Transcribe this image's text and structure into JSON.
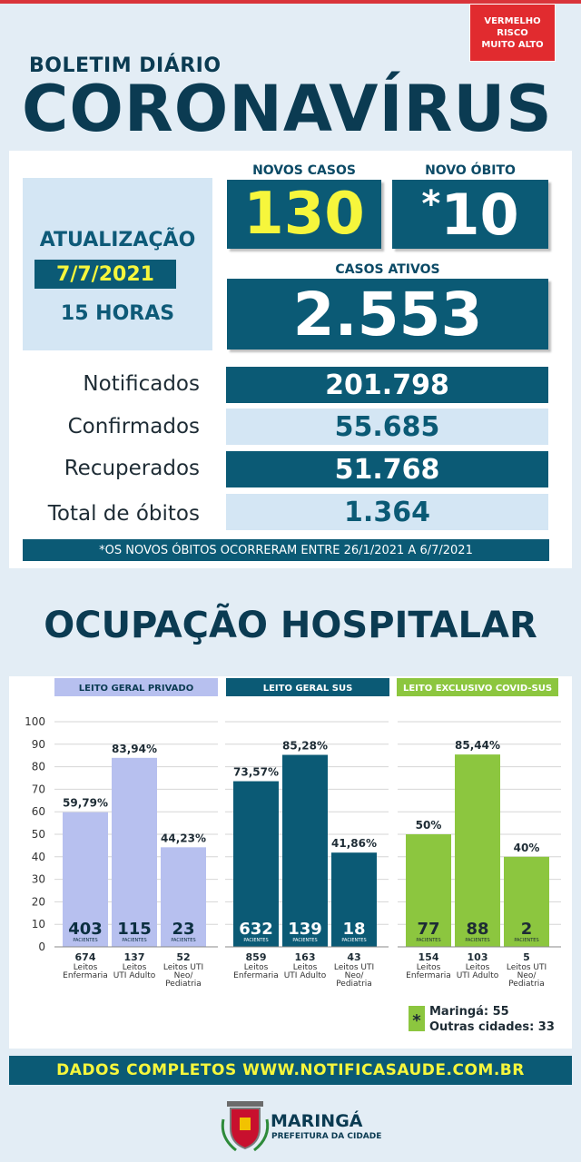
{
  "header": {
    "risk_line1": "VERMELHO",
    "risk_line2": "RISCO",
    "risk_line3": "MUITO ALTO",
    "risk_color": "#e12b2f",
    "bulletin": "BOLETIM DIÁRIO",
    "title": "CORONAVÍRUS"
  },
  "update": {
    "label": "ATUALIZAÇÃO",
    "date": "7/7/2021",
    "time": "15 HORAS"
  },
  "highlights": {
    "new_cases_label": "NOVOS CASOS",
    "new_cases": "130",
    "new_death_label": "NOVO ÓBITO",
    "new_death_mark": "*",
    "new_death": "10",
    "active_label": "CASOS ATIVOS",
    "active": "2.553"
  },
  "totals": [
    {
      "label": "Notificados",
      "value": "201.798"
    },
    {
      "label": "Confirmados",
      "value": "55.685"
    },
    {
      "label": "Recuperados",
      "value": "51.768"
    },
    {
      "label": "Total de óbitos",
      "value": "1.364"
    }
  ],
  "note": "*OS NOVOS ÓBITOS OCORRERAM ENTRE 26/1/2021 A 6/7/2021",
  "hospital_title": "OCUPAÇÃO HOSPITALAR",
  "chart_data": {
    "type": "bar",
    "ylim": [
      0,
      100
    ],
    "yticks": [
      0,
      10,
      20,
      30,
      40,
      50,
      60,
      70,
      80,
      90,
      100
    ],
    "grid": true,
    "patients_unit": "PACIENTES",
    "groups": [
      {
        "name": "LEITO GERAL PRIVADO",
        "color": "#b7c0ef",
        "header_color": "#b7c0ef",
        "header_text_color": "#0b3b52",
        "bars": [
          {
            "pct": 59.79,
            "pct_label": "59,79%",
            "patients": "403",
            "beds": "674",
            "cat1": "Leitos",
            "cat2": "Enfermaria",
            "cat3": ""
          },
          {
            "pct": 83.94,
            "pct_label": "83,94%",
            "patients": "115",
            "beds": "137",
            "cat1": "Leitos",
            "cat2": "UTI Adulto",
            "cat3": ""
          },
          {
            "pct": 44.23,
            "pct_label": "44,23%",
            "patients": "23",
            "beds": "52",
            "cat1": "Leitos UTI",
            "cat2": "Neo/",
            "cat3": "Pediatria"
          }
        ]
      },
      {
        "name": "LEITO GERAL SUS",
        "color": "#0b5a75",
        "header_color": "#0b5a75",
        "header_text_color": "#ffffff",
        "bars": [
          {
            "pct": 73.57,
            "pct_label": "73,57%",
            "patients": "632",
            "beds": "859",
            "cat1": "Leitos",
            "cat2": "Enfermaria",
            "cat3": ""
          },
          {
            "pct": 85.28,
            "pct_label": "85,28%",
            "patients": "139",
            "beds": "163",
            "cat1": "Leitos",
            "cat2": "UTI Adulto",
            "cat3": ""
          },
          {
            "pct": 41.86,
            "pct_label": "41,86%",
            "patients": "18",
            "beds": "43",
            "cat1": "Leitos UTI",
            "cat2": "Neo/",
            "cat3": "Pediatria"
          }
        ]
      },
      {
        "name": "LEITO EXCLUSIVO COVID-SUS",
        "color": "#8cc63f",
        "header_color": "#8cc63f",
        "header_text_color": "#ffffff",
        "bars": [
          {
            "pct": 50,
            "pct_label": "50%",
            "patients": "77",
            "beds": "154",
            "cat1": "Leitos",
            "cat2": "Enfermaria",
            "cat3": ""
          },
          {
            "pct": 85.44,
            "pct_label": "85,44%",
            "patients": "88",
            "beds": "103",
            "cat1": "Leitos",
            "cat2": "UTI Adulto",
            "cat3": ""
          },
          {
            "pct": 40,
            "pct_label": "40%",
            "patients": "2",
            "beds": "5",
            "cat1": "Leitos UTI",
            "cat2": "Neo/",
            "cat3": "Pediatria"
          }
        ]
      }
    ],
    "footnote_mark": "*",
    "footnote_lines": [
      "Maringá: 55",
      "Outras cidades: 33"
    ]
  },
  "footer": {
    "text": "DADOS COMPLETOS  WWW.NOTIFICASAUDE.COM.BR",
    "city": "MARINGÁ",
    "city_sub": "PREFEITURA DA CIDADE"
  }
}
